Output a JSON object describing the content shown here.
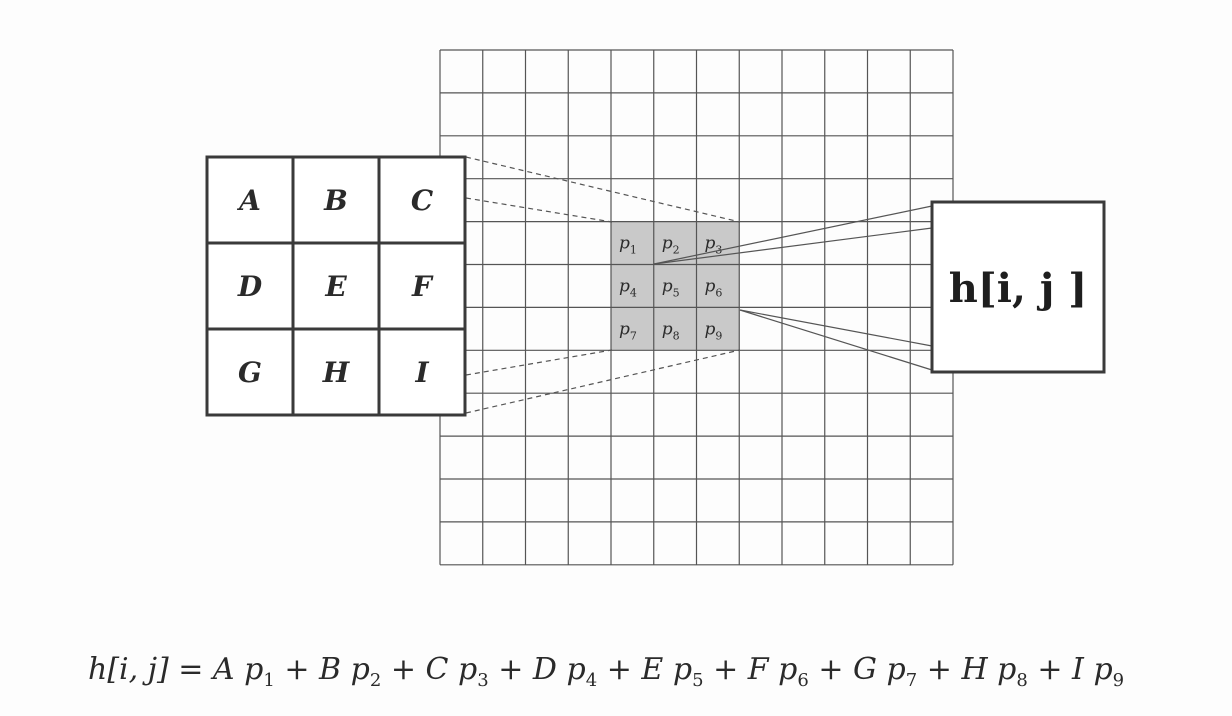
{
  "kernel": {
    "labels": [
      "A",
      "B",
      "C",
      "D",
      "E",
      "F",
      "G",
      "H",
      "I"
    ]
  },
  "image_grid": {
    "rows": 12,
    "cols": 12,
    "neighborhood": [
      {
        "base": "p",
        "sub": "1"
      },
      {
        "base": "p",
        "sub": "2"
      },
      {
        "base": "p",
        "sub": "3"
      },
      {
        "base": "p",
        "sub": "4"
      },
      {
        "base": "p",
        "sub": "5"
      },
      {
        "base": "p",
        "sub": "6"
      },
      {
        "base": "p",
        "sub": "7"
      },
      {
        "base": "p",
        "sub": "8"
      },
      {
        "base": "p",
        "sub": "9"
      }
    ],
    "highlight_color": "#c9c9c9"
  },
  "output": {
    "text": "h[i, j ]"
  },
  "equation": {
    "lhs": "h[i, j]",
    "equals": " = ",
    "terms": [
      {
        "coef": "A",
        "var": "p",
        "sub": "1"
      },
      {
        "coef": "B",
        "var": "p",
        "sub": "2"
      },
      {
        "coef": "C",
        "var": "p",
        "sub": "3"
      },
      {
        "coef": "D",
        "var": "p",
        "sub": "4"
      },
      {
        "coef": "E",
        "var": "p",
        "sub": "5"
      },
      {
        "coef": "F",
        "var": "p",
        "sub": "6"
      },
      {
        "coef": "G",
        "var": "p",
        "sub": "7"
      },
      {
        "coef": "H",
        "var": "p",
        "sub": "8"
      },
      {
        "coef": "I",
        "var": "p",
        "sub": "9"
      }
    ],
    "operator": " + "
  }
}
